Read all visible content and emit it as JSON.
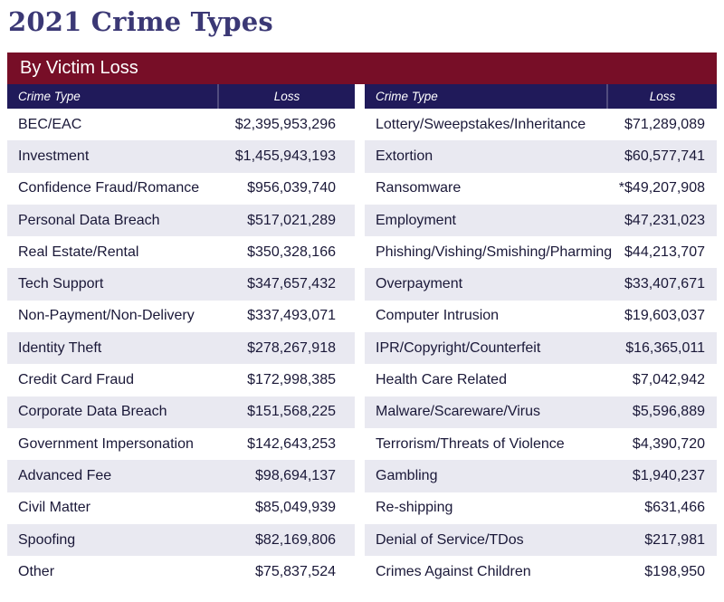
{
  "title": "2021 Crime Types",
  "banner": {
    "label": "By Victim Loss"
  },
  "table": {
    "headers": {
      "crime_type": "Crime Type",
      "loss": "Loss"
    },
    "left_rows": [
      {
        "crime_type": "BEC/EAC",
        "loss": "$2,395,953,296"
      },
      {
        "crime_type": "Investment",
        "loss": "$1,455,943,193"
      },
      {
        "crime_type": "Confidence Fraud/Romance",
        "loss": "$956,039,740"
      },
      {
        "crime_type": "Personal Data Breach",
        "loss": "$517,021,289"
      },
      {
        "crime_type": "Real Estate/Rental",
        "loss": "$350,328,166"
      },
      {
        "crime_type": "Tech Support",
        "loss": "$347,657,432"
      },
      {
        "crime_type": "Non-Payment/Non-Delivery",
        "loss": "$337,493,071"
      },
      {
        "crime_type": "Identity Theft",
        "loss": "$278,267,918"
      },
      {
        "crime_type": "Credit Card Fraud",
        "loss": "$172,998,385"
      },
      {
        "crime_type": "Corporate Data Breach",
        "loss": "$151,568,225"
      },
      {
        "crime_type": "Government Impersonation",
        "loss": "$142,643,253"
      },
      {
        "crime_type": "Advanced Fee",
        "loss": "$98,694,137"
      },
      {
        "crime_type": "Civil Matter",
        "loss": "$85,049,939"
      },
      {
        "crime_type": "Spoofing",
        "loss": "$82,169,806"
      },
      {
        "crime_type": "Other",
        "loss": "$75,837,524"
      }
    ],
    "right_rows": [
      {
        "crime_type": "Lottery/Sweepstakes/Inheritance",
        "loss": "$71,289,089"
      },
      {
        "crime_type": "Extortion",
        "loss": "$60,577,741"
      },
      {
        "crime_type": "Ransomware",
        "loss": "*$49,207,908"
      },
      {
        "crime_type": "Employment",
        "loss": "$47,231,023"
      },
      {
        "crime_type": "Phishing/Vishing/Smishing/Pharming",
        "loss": "$44,213,707"
      },
      {
        "crime_type": "Overpayment",
        "loss": "$33,407,671"
      },
      {
        "crime_type": "Computer Intrusion",
        "loss": "$19,603,037"
      },
      {
        "crime_type": "IPR/Copyright/Counterfeit",
        "loss": "$16,365,011"
      },
      {
        "crime_type": "Health Care Related",
        "loss": "$7,042,942"
      },
      {
        "crime_type": "Malware/Scareware/Virus",
        "loss": "$5,596,889"
      },
      {
        "crime_type": "Terrorism/Threats of Violence",
        "loss": "$4,390,720"
      },
      {
        "crime_type": "Gambling",
        "loss": "$1,940,237"
      },
      {
        "crime_type": "Re-shipping",
        "loss": "$631,466"
      },
      {
        "crime_type": "Denial of Service/TDos",
        "loss": "$217,981"
      },
      {
        "crime_type": "Crimes Against Children",
        "loss": "$198,950"
      }
    ]
  },
  "colors": {
    "title": "#3b3875",
    "banner_bg": "#770e27",
    "header_bg": "#201a5a",
    "header_text": "#ffffff",
    "row_alt_bg": "#e9e9f1",
    "row_text": "#1a1838"
  }
}
